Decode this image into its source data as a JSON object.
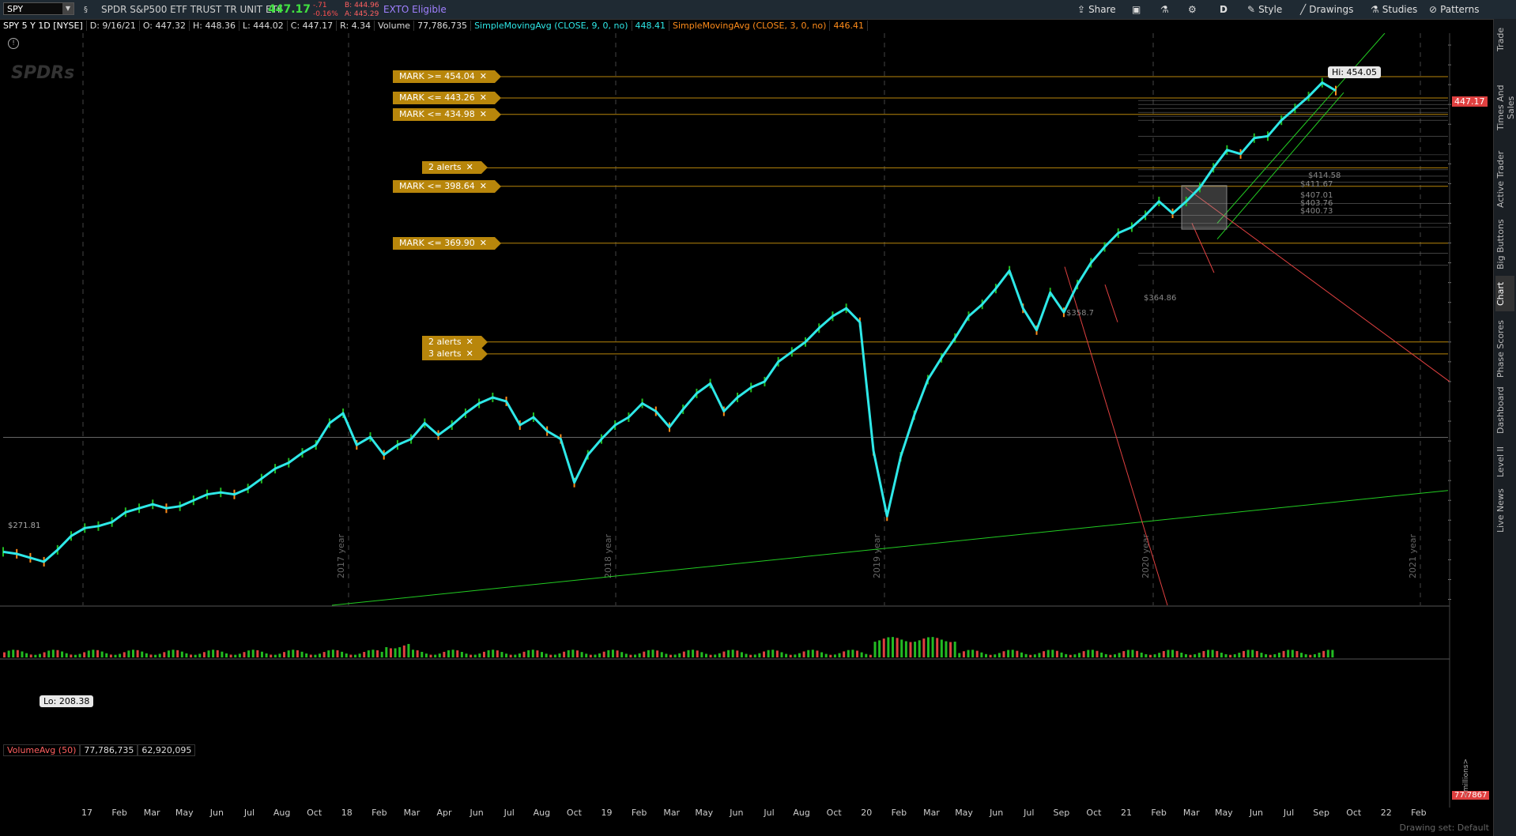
{
  "topbar": {
    "symbol": "SPY",
    "description": "SPDR S&P500 ETF TRUST TR UNIT ETF",
    "last": "447.17",
    "change": "-.71",
    "change_pct": "-0.16%",
    "bid": "B: 444.96",
    "ask": "A: 445.29",
    "exto": "EXTO Eligible",
    "share": "Share",
    "aggregation": "D",
    "style": "Style",
    "drawings": "Drawings",
    "studies": "Studies",
    "patterns": "Patterns"
  },
  "infobar": {
    "title": "SPY 5 Y 1D [NYSE]",
    "date": "D: 9/16/21",
    "open": "O: 447.32",
    "high": "H: 448.36",
    "low": "L: 444.02",
    "close": "C: 447.17",
    "range": "R: 4.34",
    "volume_label": "Volume",
    "volume": "77,786,735",
    "sma9": "SimpleMovingAvg (CLOSE, 9, 0, no)",
    "sma9_value": "448.41",
    "sma3": "SimpleMovingAvg (CLOSE, 3, 0, no)",
    "sma3_value": "446.41"
  },
  "alerts": [
    {
      "label": "MARK >= 454.04",
      "price": 454.04
    },
    {
      "label": "MARK <= 443.26",
      "price": 443.26
    },
    {
      "label": "MARK <= 434.98",
      "price": 434.98
    },
    {
      "label": "2 alerts",
      "price": 408
    },
    {
      "label": "MARK <= 398.64",
      "price": 398.64
    },
    {
      "label": "MARK <= 369.90",
      "price": 369.9
    },
    {
      "label": "2 alerts",
      "price": 320
    },
    {
      "label": "3 alerts",
      "price": 314
    }
  ],
  "price_labels": [
    "$358.7",
    "$364.86",
    "$414.58",
    "$411.67",
    "$407.01",
    "$403.76",
    "$400.73",
    "$271.81"
  ],
  "hi": "Hi: 454.05",
  "lo": "Lo: 208.38",
  "volume_study": {
    "label": "VolumeAvg (50)",
    "value1": "77,786,735",
    "value2": "62,920,095",
    "tag": "77.7867",
    "unit": "<millions>",
    "ticks": [
      "400",
      "200"
    ]
  },
  "side_tabs": [
    "Trade",
    "Times And Sales",
    "Active Trader",
    "Big Buttons",
    "Chart",
    "Phase Scores",
    "Dashboard",
    "Level II",
    "Live News"
  ],
  "bottom_hint": "Drawing set: Default",
  "colors": {
    "price_line": "#2ee8e8",
    "candle_up": "#22bb22",
    "candle_down": "#ff8c1a",
    "alert": "#b8860b",
    "trend_green": "#22cc22",
    "trend_red": "#e04040"
  },
  "chart_data": {
    "type": "line",
    "title": "SPY 5 Y 1D [NYSE]",
    "xlabel": "",
    "ylabel": "",
    "ylim": [
      187,
      476
    ],
    "y_ticks": [
      470,
      460,
      450,
      440,
      430,
      420,
      410,
      400,
      390,
      380,
      370,
      360,
      350,
      340,
      330,
      320,
      310,
      300,
      290,
      280,
      270,
      260,
      250,
      240,
      230,
      220,
      210,
      200,
      190
    ],
    "x_tick_labels": [
      "17",
      "Feb",
      "Mar",
      "May",
      "Jun",
      "Jul",
      "Aug",
      "Oct",
      "18",
      "Feb",
      "Mar",
      "Apr",
      "Jun",
      "Jul",
      "Aug",
      "Oct",
      "19",
      "Feb",
      "Mar",
      "May",
      "Jun",
      "Jul",
      "Aug",
      "Oct",
      "20",
      "Feb",
      "Mar",
      "May",
      "Jun",
      "Jul",
      "Sep",
      "Oct",
      "21",
      "Feb",
      "Mar",
      "May",
      "Jun",
      "Jul",
      "Sep",
      "Oct",
      "22",
      "Feb"
    ],
    "year_labels": [
      "2017 year",
      "2018 year",
      "2019 year",
      "2020 year",
      "2021 year"
    ],
    "series": [
      {
        "name": "SimpleMovingAvg (CLOSE, 9, 0, no)",
        "values": [
          214,
          213,
          211,
          209,
          215,
          222,
          226,
          227,
          229,
          234,
          236,
          238,
          236,
          237,
          240,
          243,
          244,
          243,
          246,
          251,
          256,
          259,
          264,
          268,
          279,
          284,
          268,
          272,
          263,
          268,
          271,
          279,
          273,
          278,
          284,
          289,
          292,
          290,
          278,
          282,
          275,
          271,
          249,
          263,
          271,
          278,
          282,
          289,
          285,
          277,
          286,
          294,
          299,
          285,
          292,
          297,
          300,
          310,
          315,
          320,
          327,
          333,
          337,
          330,
          265,
          232,
          262,
          283,
          301,
          312,
          322,
          333,
          339,
          347,
          356,
          337,
          326,
          345,
          335,
          349,
          360,
          368,
          375,
          378,
          384,
          391,
          385,
          391,
          398,
          408,
          417,
          415,
          423,
          424,
          432,
          438,
          444,
          451,
          447
        ]
      }
    ]
  }
}
